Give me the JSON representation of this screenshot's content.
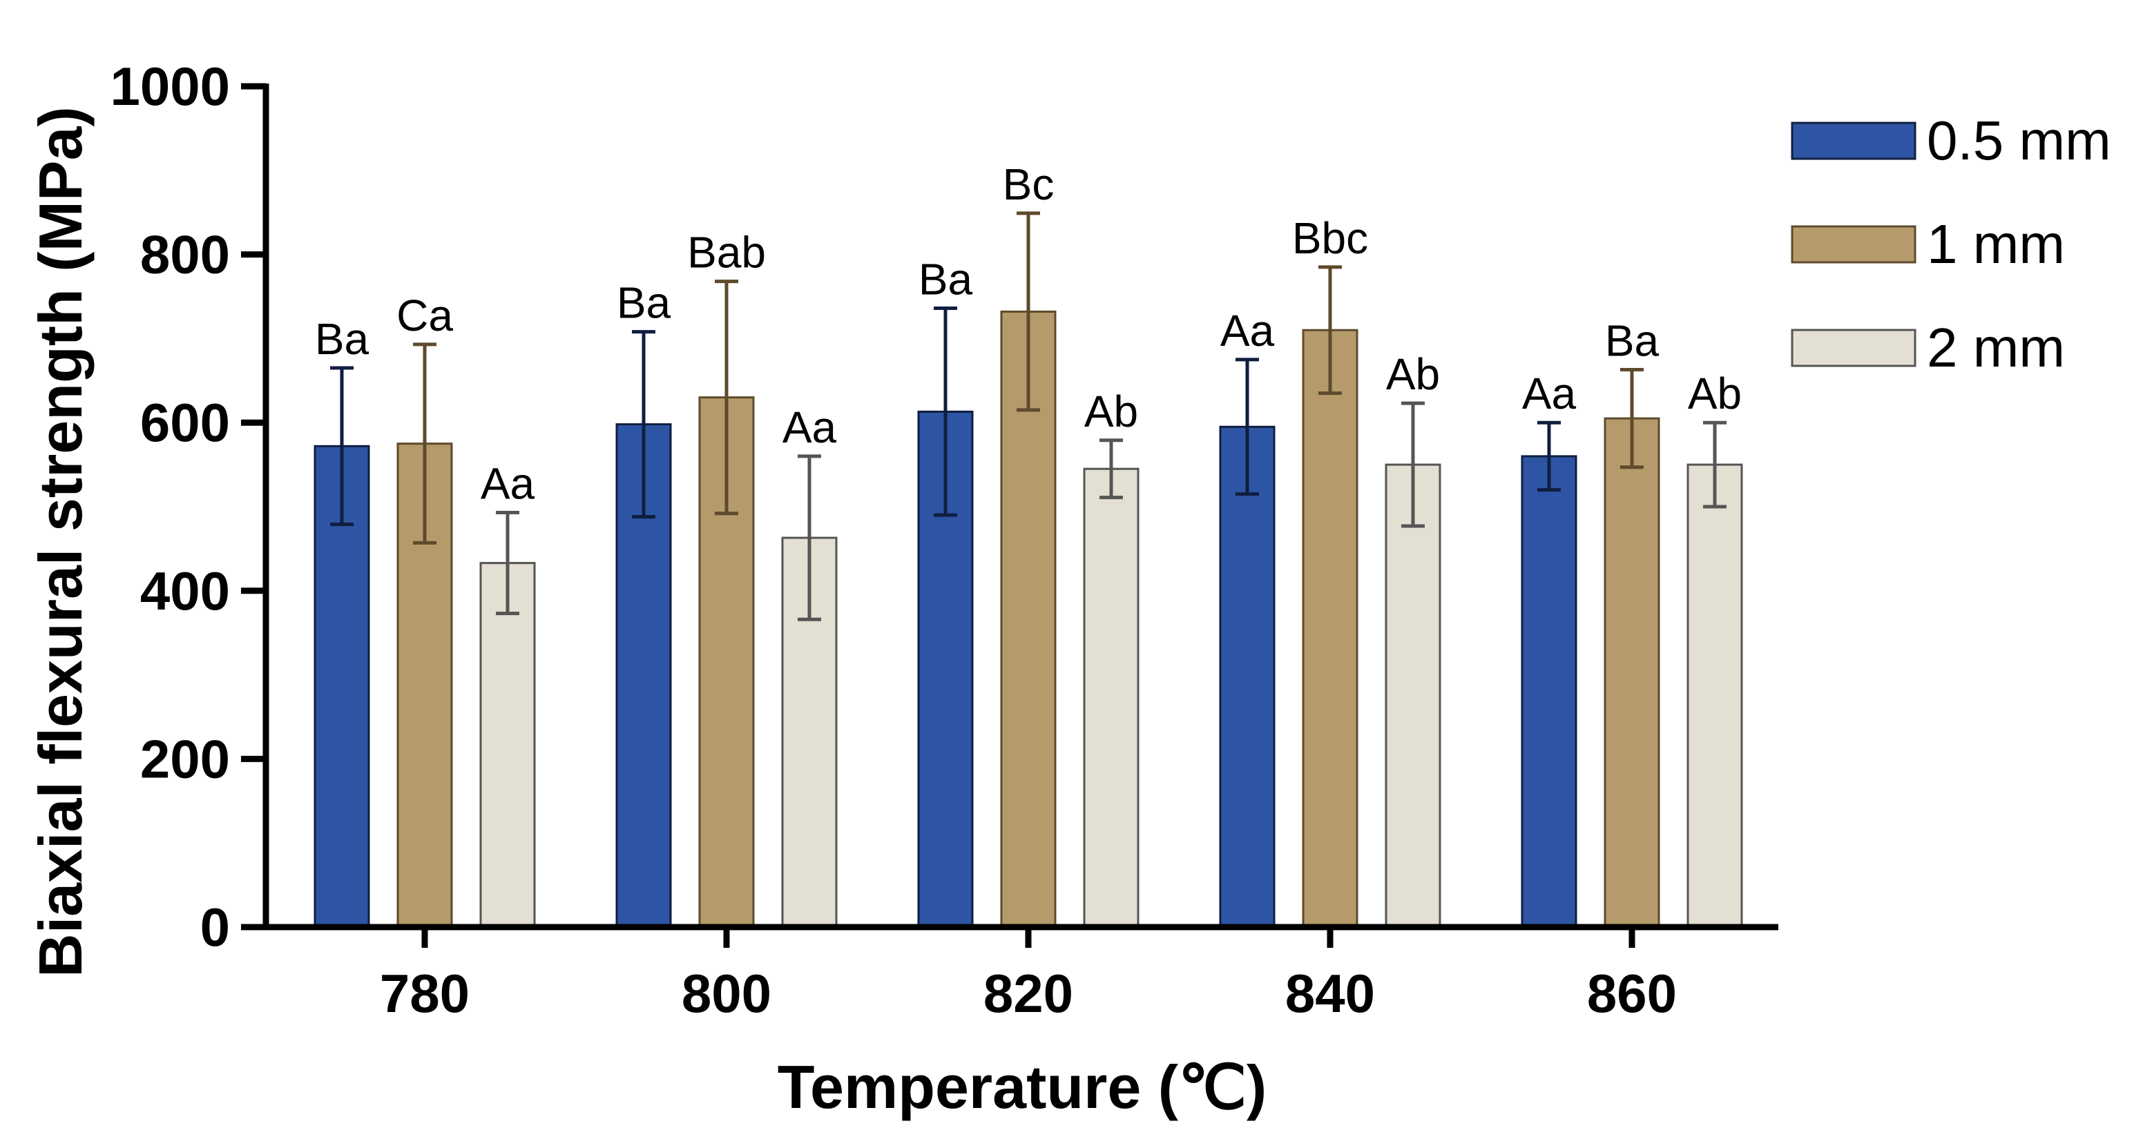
{
  "chart_data": {
    "type": "bar",
    "title": "",
    "xlabel": "Temperature (℃)",
    "ylabel": "Biaxial flexural strength (MPa)",
    "ylim": [
      0,
      1000
    ],
    "yticks": [
      0,
      200,
      400,
      600,
      800,
      1000
    ],
    "categories": [
      "780",
      "800",
      "820",
      "840",
      "860"
    ],
    "legend_position": "top-right",
    "series": [
      {
        "name": "0.5 mm",
        "color": "#2E55A3",
        "edge_color": "#0F1E40",
        "values": [
          572,
          598,
          613,
          595,
          560
        ],
        "errors": [
          93,
          110,
          123,
          80,
          40
        ],
        "labels": [
          "Ba",
          "Ba",
          "Ba",
          "Aa",
          "Aa"
        ]
      },
      {
        "name": "1 mm",
        "color": "#B59A6B",
        "edge_color": "#5E4A2C",
        "values": [
          575,
          630,
          732,
          710,
          605
        ],
        "errors": [
          118,
          138,
          117,
          75,
          58
        ],
        "labels": [
          "Ca",
          "Bab",
          "Bc",
          "Bbc",
          "Ba"
        ]
      },
      {
        "name": "2 mm",
        "color": "#E3DFD3",
        "edge_color": "#555555",
        "values": [
          433,
          463,
          545,
          550,
          550
        ],
        "errors": [
          60,
          97,
          34,
          73,
          50
        ],
        "labels": [
          "Aa",
          "Aa",
          "Ab",
          "Ab",
          "Ab"
        ]
      }
    ]
  }
}
